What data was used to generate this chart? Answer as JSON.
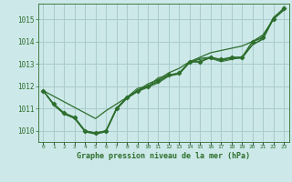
{
  "title": "Graphe pression niveau de la mer (hPa)",
  "bg_color": "#cce8e8",
  "grid_color": "#aacccc",
  "line_color": "#2d6e2d",
  "x_labels": [
    "0",
    "1",
    "2",
    "3",
    "4",
    "5",
    "6",
    "7",
    "8",
    "9",
    "10",
    "11",
    "12",
    "13",
    "14",
    "15",
    "16",
    "17",
    "18",
    "19",
    "20",
    "21",
    "22",
    "23"
  ],
  "ylim": [
    1009.5,
    1015.7
  ],
  "yticks": [
    1010,
    1011,
    1012,
    1013,
    1014,
    1015
  ],
  "line_straight": [
    1011.8,
    1011.55,
    1011.3,
    1011.05,
    1010.8,
    1010.55,
    1010.9,
    1011.2,
    1011.5,
    1011.8,
    1012.1,
    1012.3,
    1012.6,
    1012.8,
    1013.1,
    1013.3,
    1013.5,
    1013.6,
    1013.7,
    1013.8,
    1014.0,
    1014.3,
    1015.0,
    1015.5
  ],
  "line_cluster1": [
    1011.8,
    1011.2,
    1010.8,
    1010.6,
    1010.0,
    1009.9,
    1010.0,
    1011.0,
    1011.5,
    1011.9,
    1012.0,
    1012.2,
    1012.5,
    1012.55,
    1013.1,
    1013.2,
    1013.25,
    1013.1,
    1013.2,
    1013.3,
    1013.85,
    1014.1,
    1015.0,
    1015.4
  ],
  "line_cluster2": [
    1011.8,
    1011.15,
    1010.75,
    1010.55,
    1009.95,
    1009.85,
    1009.95,
    1010.95,
    1011.45,
    1011.75,
    1011.95,
    1012.15,
    1012.45,
    1012.55,
    1013.05,
    1013.25,
    1013.3,
    1013.15,
    1013.25,
    1013.25,
    1013.85,
    1014.15,
    1015.05,
    1015.45
  ],
  "line_cluster3": [
    1011.8,
    1011.18,
    1010.78,
    1010.58,
    1009.98,
    1009.88,
    1009.98,
    1010.98,
    1011.48,
    1011.78,
    1011.98,
    1012.38,
    1012.48,
    1012.58,
    1013.08,
    1013.08,
    1013.28,
    1013.18,
    1013.28,
    1013.28,
    1013.98,
    1014.18,
    1015.08,
    1015.48
  ],
  "line_marked": [
    1011.8,
    1011.2,
    1010.8,
    1010.6,
    1010.0,
    1009.9,
    1010.0,
    1011.0,
    1011.5,
    1011.8,
    1012.0,
    1012.25,
    1012.5,
    1012.6,
    1013.1,
    1013.1,
    1013.3,
    1013.2,
    1013.3,
    1013.3,
    1014.0,
    1014.2,
    1015.0,
    1015.5
  ]
}
